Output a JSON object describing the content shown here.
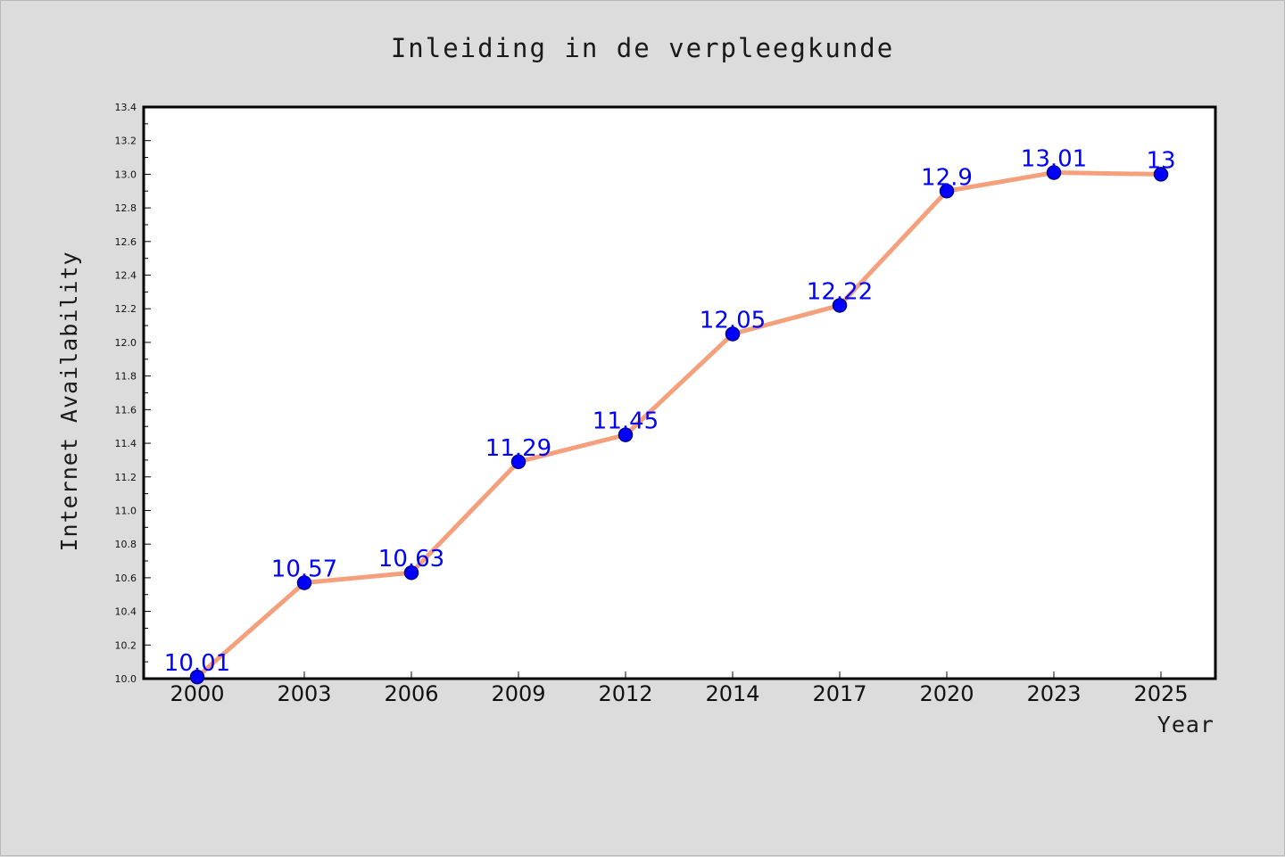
{
  "chart_data": {
    "type": "line",
    "title": "Inleiding in de verpleegkunde",
    "xlabel": "Year",
    "ylabel": "Internet Availability",
    "categories": [
      "2000",
      "2003",
      "2006",
      "2009",
      "2012",
      "2014",
      "2017",
      "2020",
      "2023",
      "2025"
    ],
    "series": [
      {
        "values": [
          10.01,
          10.57,
          10.63,
          11.29,
          11.45,
          12.05,
          12.22,
          12.9,
          13.01,
          13
        ],
        "data_labels": [
          "10.01",
          "10.57",
          "10.63",
          "11.29",
          "11.45",
          "12.05",
          "12.22",
          "12.9",
          "13.01",
          "13"
        ]
      }
    ],
    "ylim": [
      10.0,
      13.4
    ],
    "yticks": [
      "10.0",
      "10.2",
      "10.4",
      "10.6",
      "10.8",
      "11.0",
      "11.2",
      "11.4",
      "11.6",
      "11.8",
      "12.0",
      "12.2",
      "12.4",
      "12.6",
      "12.8",
      "13.0",
      "13.2",
      "13.4"
    ],
    "ytick_values": [
      10.0,
      10.2,
      10.4,
      10.6,
      10.8,
      11.0,
      11.2,
      11.4,
      11.6,
      11.8,
      12.0,
      12.2,
      12.4,
      12.6,
      12.8,
      13.0,
      13.2,
      13.4
    ],
    "grid": false,
    "colors": {
      "line": "#f4a07c",
      "marker": "#0000ff",
      "marker_edge": "#00008b",
      "data_label": "#0000ff",
      "background": "#dcdcdc",
      "plot_background": "#ffffff"
    }
  }
}
